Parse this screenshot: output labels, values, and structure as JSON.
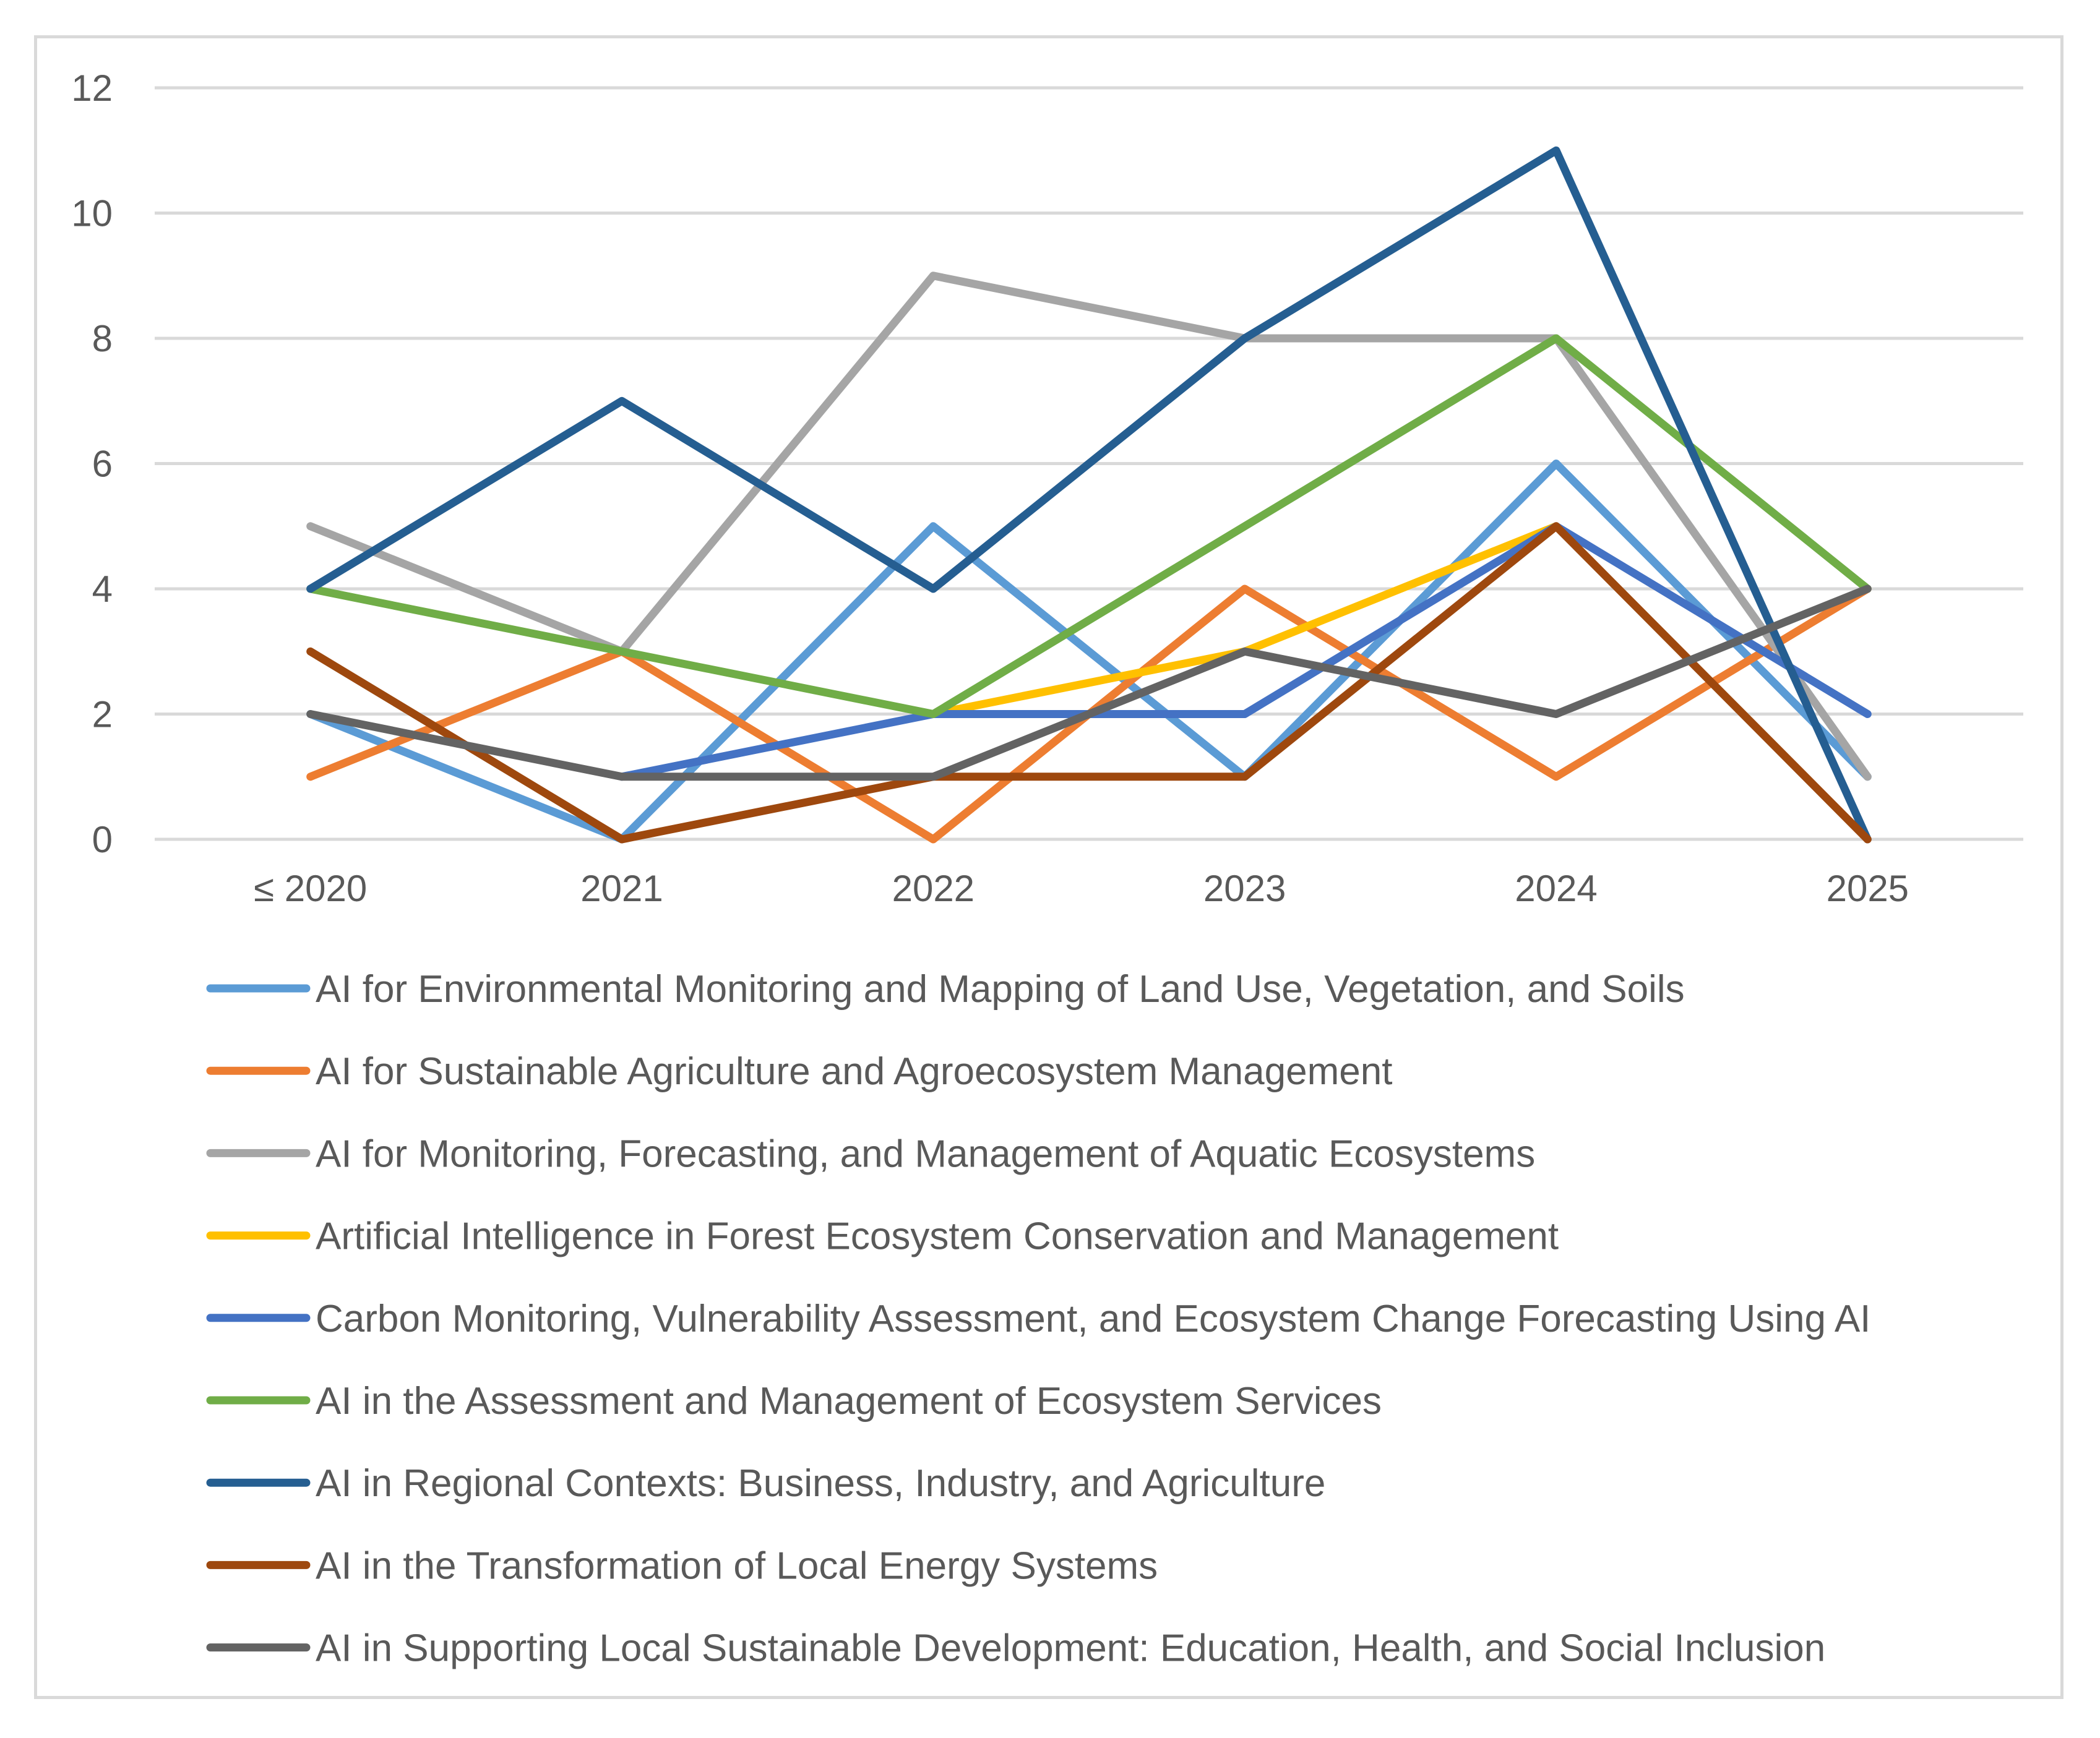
{
  "chart_data": {
    "type": "line",
    "title": "",
    "xlabel": "",
    "ylabel": "",
    "ylim": [
      0,
      12
    ],
    "yticks": [
      0,
      2,
      4,
      6,
      8,
      10,
      12
    ],
    "grid": true,
    "legend_position": "bottom",
    "categories": [
      "≤ 2020",
      "2021",
      "2022",
      "2023",
      "2024",
      "2025"
    ],
    "series": [
      {
        "name": "AI for Environmental Monitoring and Mapping of Land Use, Vegetation, and Soils",
        "color": "#5b9bd5",
        "values": [
          2,
          0,
          5,
          1,
          6,
          1
        ]
      },
      {
        "name": "AI for Sustainable Agriculture and Agroecosystem Management",
        "color": "#ed7d31",
        "values": [
          1,
          3,
          0,
          4,
          1,
          4
        ]
      },
      {
        "name": "AI for Monitoring, Forecasting, and Management of Aquatic Ecosystems",
        "color": "#a5a5a5",
        "values": [
          5,
          3,
          9,
          8,
          8,
          1
        ]
      },
      {
        "name": "Artificial Intelligence in Forest Ecosystem Conservation and Management",
        "color": "#ffc000",
        "values": [
          null,
          null,
          2,
          3,
          5,
          null
        ]
      },
      {
        "name": "Carbon Monitoring, Vulnerability Assessment, and Ecosystem Change Forecasting Using AI",
        "color": "#4472c4",
        "values": [
          null,
          1,
          2,
          2,
          5,
          2
        ]
      },
      {
        "name": "AI in the Assessment and Management of Ecosystem Services",
        "color": "#70ad47",
        "values": [
          4,
          3,
          2,
          5,
          8,
          4
        ]
      },
      {
        "name": "AI in Regional Contexts: Business, Industry, and Agriculture",
        "color": "#255e91",
        "values": [
          4,
          7,
          4,
          8,
          11,
          0
        ]
      },
      {
        "name": "AI in the Transformation of Local Energy Systems",
        "color": "#9e480e",
        "values": [
          3,
          0,
          1,
          1,
          5,
          0
        ]
      },
      {
        "name": "AI in Supporting Local Sustainable Development: Education, Health, and Social Inclusion",
        "color": "#636363",
        "values": [
          2,
          1,
          1,
          3,
          2,
          4
        ]
      }
    ]
  }
}
